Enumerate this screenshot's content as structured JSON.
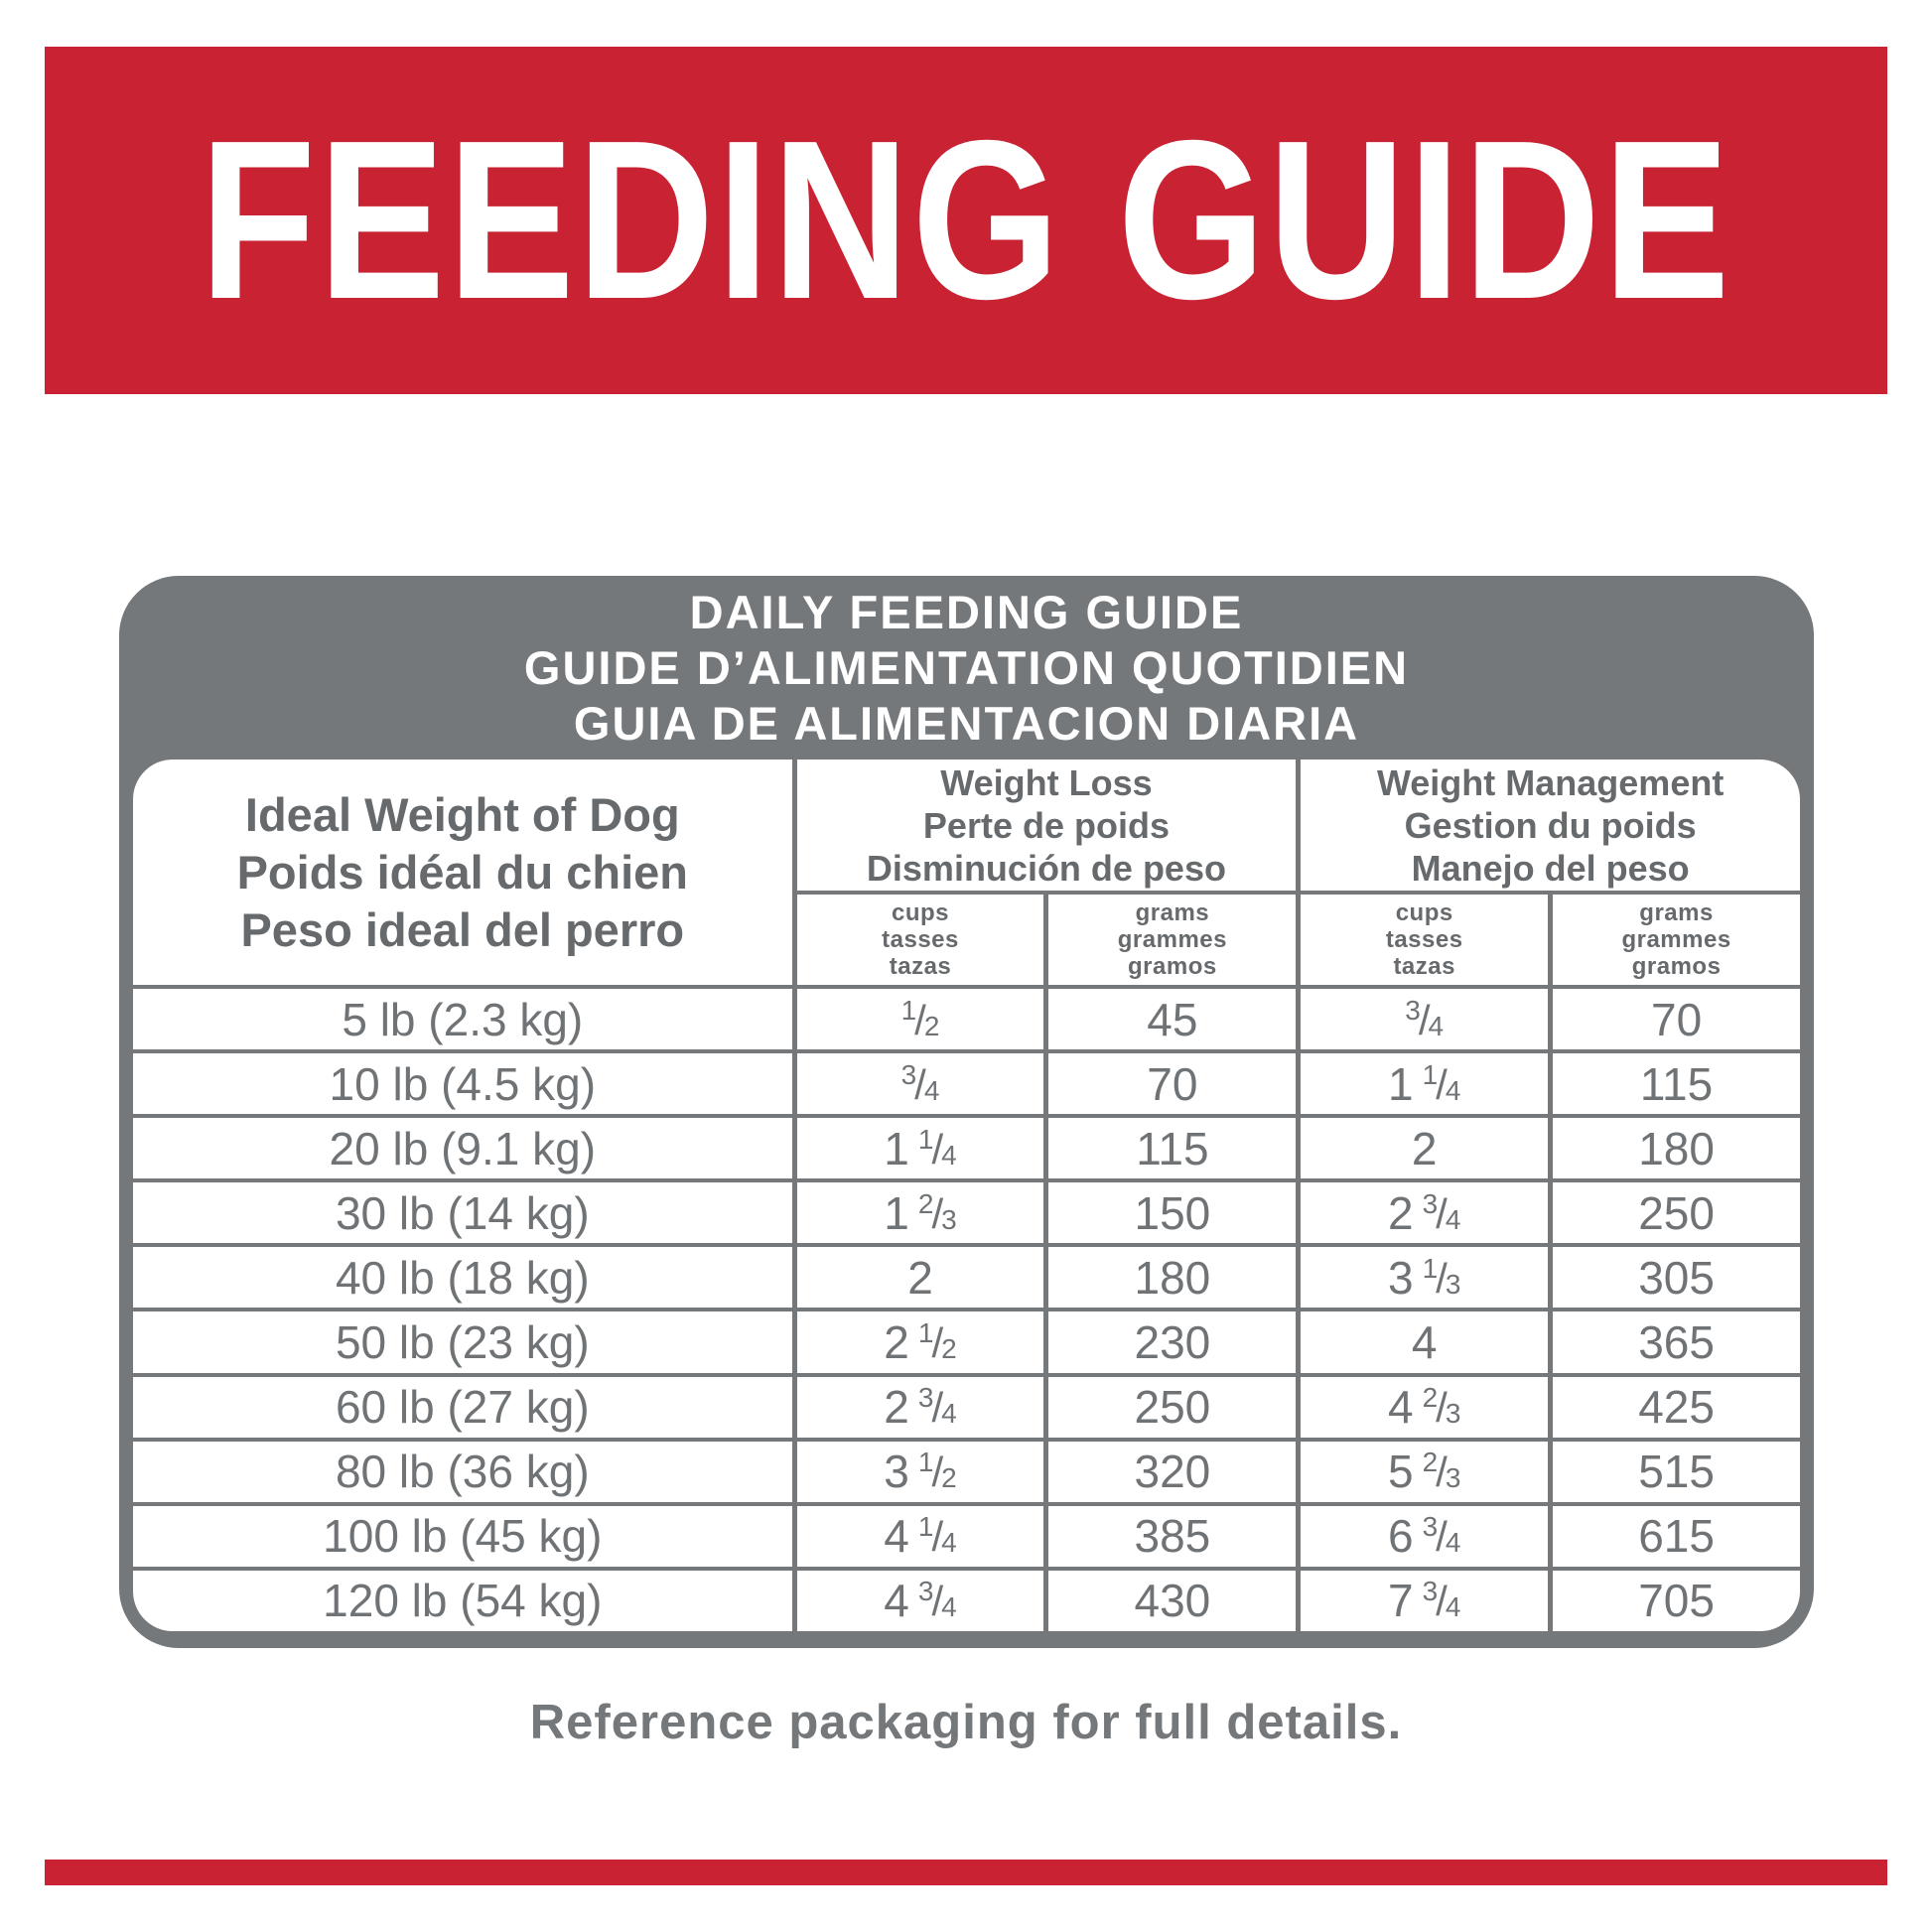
{
  "colors": {
    "red": "#c92233",
    "gray": "#75787b",
    "headtext": "#666a6d",
    "datatext": "#6f7376"
  },
  "banner": {
    "title": "FEEDING GUIDE"
  },
  "table": {
    "title_lines": [
      "DAILY FEEDING GUIDE",
      "GUIDE D’ALIMENTATION QUOTIDIEN",
      "GUIA DE ALIMENTACION DIARIA"
    ],
    "weight_header_lines": [
      "Ideal Weight of Dog",
      "Poids idéal du chien",
      "Peso ideal del perro"
    ],
    "groups": [
      {
        "title_lines": [
          "Weight Loss",
          "Perte de poids",
          "Disminución de peso"
        ]
      },
      {
        "title_lines": [
          "Weight Management",
          "Gestion du poids",
          "Manejo del peso"
        ]
      }
    ],
    "unit_headers": {
      "cups_lines": [
        "cups",
        "tasses",
        "tazas"
      ],
      "grams_lines": [
        "grams",
        "grammes",
        "gramos"
      ]
    },
    "rows": [
      {
        "weight": "5 lb (2.3 kg)",
        "wl_cups": {
          "whole": "",
          "num": "1",
          "den": "2"
        },
        "wl_grams": "45",
        "wm_cups": {
          "whole": "",
          "num": "3",
          "den": "4"
        },
        "wm_grams": "70"
      },
      {
        "weight": "10 lb (4.5 kg)",
        "wl_cups": {
          "whole": "",
          "num": "3",
          "den": "4"
        },
        "wl_grams": "70",
        "wm_cups": {
          "whole": "1",
          "num": "1",
          "den": "4"
        },
        "wm_grams": "115"
      },
      {
        "weight": "20 lb (9.1 kg)",
        "wl_cups": {
          "whole": "1",
          "num": "1",
          "den": "4"
        },
        "wl_grams": "115",
        "wm_cups": {
          "whole": "2",
          "num": "",
          "den": ""
        },
        "wm_grams": "180"
      },
      {
        "weight": "30 lb (14 kg)",
        "wl_cups": {
          "whole": "1",
          "num": "2",
          "den": "3"
        },
        "wl_grams": "150",
        "wm_cups": {
          "whole": "2",
          "num": "3",
          "den": "4"
        },
        "wm_grams": "250"
      },
      {
        "weight": "40 lb (18 kg)",
        "wl_cups": {
          "whole": "2",
          "num": "",
          "den": ""
        },
        "wl_grams": "180",
        "wm_cups": {
          "whole": "3",
          "num": "1",
          "den": "3"
        },
        "wm_grams": "305"
      },
      {
        "weight": "50 lb (23 kg)",
        "wl_cups": {
          "whole": "2",
          "num": "1",
          "den": "2"
        },
        "wl_grams": "230",
        "wm_cups": {
          "whole": "4",
          "num": "",
          "den": ""
        },
        "wm_grams": "365"
      },
      {
        "weight": "60 lb (27 kg)",
        "wl_cups": {
          "whole": "2",
          "num": "3",
          "den": "4"
        },
        "wl_grams": "250",
        "wm_cups": {
          "whole": "4",
          "num": "2",
          "den": "3"
        },
        "wm_grams": "425"
      },
      {
        "weight": "80 lb (36 kg)",
        "wl_cups": {
          "whole": "3",
          "num": "1",
          "den": "2"
        },
        "wl_grams": "320",
        "wm_cups": {
          "whole": "5",
          "num": "2",
          "den": "3"
        },
        "wm_grams": "515"
      },
      {
        "weight": "100 lb (45 kg)",
        "wl_cups": {
          "whole": "4",
          "num": "1",
          "den": "4"
        },
        "wl_grams": "385",
        "wm_cups": {
          "whole": "6",
          "num": "3",
          "den": "4"
        },
        "wm_grams": "615"
      },
      {
        "weight": "120 lb (54 kg)",
        "wl_cups": {
          "whole": "4",
          "num": "3",
          "den": "4"
        },
        "wl_grams": "430",
        "wm_cups": {
          "whole": "7",
          "num": "3",
          "den": "4"
        },
        "wm_grams": "705"
      }
    ]
  },
  "footer": {
    "note": "Reference packaging for full details."
  }
}
